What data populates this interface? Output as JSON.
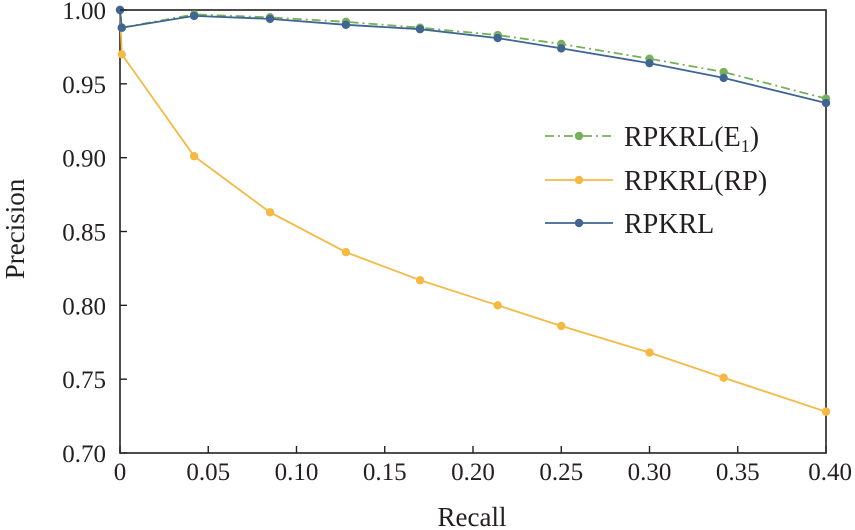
{
  "chart_data": {
    "type": "line",
    "xlabel": "Recall",
    "ylabel": "Precision",
    "xlim": [
      0,
      0.4
    ],
    "ylim": [
      0.7,
      1.0
    ],
    "xticks": [
      "0",
      "0.05",
      "0.10",
      "0.15",
      "0.20",
      "0.25",
      "0.30",
      "0.35",
      "0.40"
    ],
    "yticks": [
      "0.70",
      "0.75",
      "0.80",
      "0.85",
      "0.90",
      "0.95",
      "1.00"
    ],
    "grid": false,
    "legend_position": "right",
    "series": [
      {
        "name": "RPKRL(E",
        "name_subscript": "1",
        "name_suffix": ")",
        "color": "#77b05a",
        "line_style": "dash-dot",
        "x": [
          0,
          0.001,
          0.042,
          0.085,
          0.128,
          0.17,
          0.214,
          0.25,
          0.3,
          0.342,
          0.4
        ],
        "y": [
          1.0,
          0.988,
          0.997,
          0.995,
          0.992,
          0.988,
          0.983,
          0.977,
          0.967,
          0.958,
          0.94
        ]
      },
      {
        "name": "RPKRL(RP)",
        "color": "#f4b942",
        "line_style": "solid",
        "x": [
          0,
          0.001,
          0.042,
          0.085,
          0.128,
          0.17,
          0.214,
          0.25,
          0.3,
          0.342,
          0.4
        ],
        "y": [
          1.0,
          0.97,
          0.901,
          0.863,
          0.836,
          0.817,
          0.8,
          0.786,
          0.768,
          0.751,
          0.728
        ]
      },
      {
        "name": "RPKRL",
        "color": "#3f6593",
        "line_style": "solid",
        "x": [
          0,
          0.001,
          0.042,
          0.085,
          0.128,
          0.17,
          0.214,
          0.25,
          0.3,
          0.342,
          0.4
        ],
        "y": [
          1.0,
          0.988,
          0.996,
          0.994,
          0.99,
          0.987,
          0.981,
          0.974,
          0.964,
          0.954,
          0.937
        ]
      }
    ]
  }
}
